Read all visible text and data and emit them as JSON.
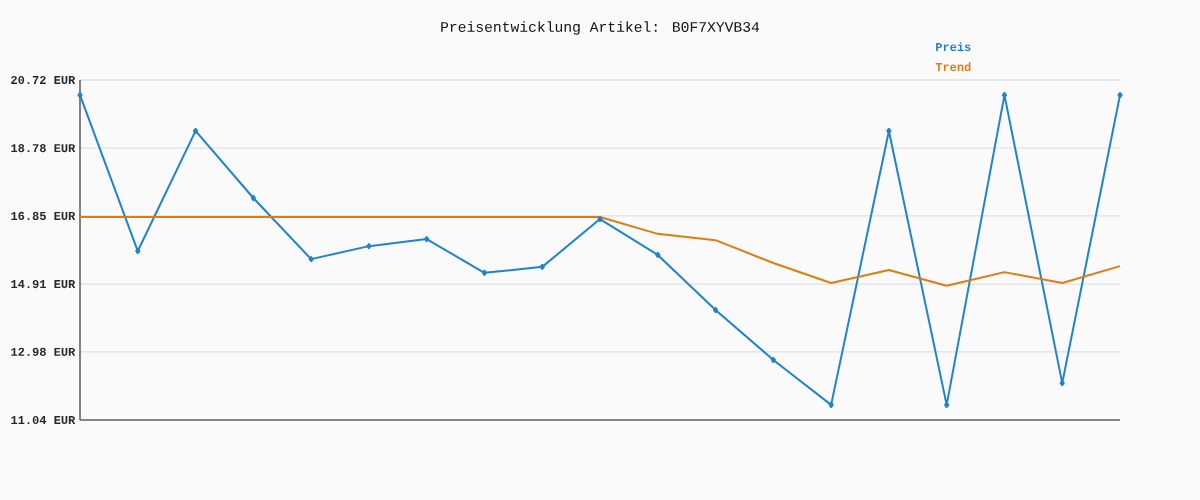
{
  "chart_data": {
    "type": "line",
    "title": "Preisentwicklung Artikel: B0F7XYVB34",
    "categories": [
      null,
      null,
      null,
      null,
      null,
      null,
      null,
      null,
      null,
      null,
      null,
      null,
      null,
      null,
      null,
      null,
      null,
      null,
      null
    ],
    "series": [
      {
        "name": "Preis",
        "color": "#1f83d0",
        "values": [
          20.29,
          15.85,
          19.27,
          17.36,
          15.62,
          15.99,
          16.19,
          15.23,
          15.4,
          16.76,
          15.74,
          14.17,
          12.75,
          11.47,
          19.27,
          11.47,
          20.29,
          12.09,
          20.29
        ]
      },
      {
        "name": "Trend",
        "color": "#e07b10",
        "marker": "none",
        "values": [
          16.82,
          16.82,
          16.82,
          16.82,
          16.82,
          16.82,
          16.82,
          16.82,
          16.82,
          16.82,
          16.34,
          16.16,
          15.51,
          14.94,
          15.31,
          14.86,
          15.25,
          14.94,
          15.42
        ]
      }
    ],
    "ylim": [
      11.04,
      20.72
    ],
    "yticks": [
      {
        "value": 11.04,
        "label": "11.04 EUR"
      },
      {
        "value": 12.98,
        "label": "12.98 EUR"
      },
      {
        "value": 14.91,
        "label": "14.91 EUR"
      },
      {
        "value": 16.85,
        "label": "16.85 EUR"
      },
      {
        "value": 18.78,
        "label": "18.78 EUR"
      },
      {
        "value": 20.72,
        "label": "20.72 EUR"
      }
    ],
    "grid": "y",
    "legend": "top right",
    "marker": "diamond",
    "line_style": "solid"
  }
}
